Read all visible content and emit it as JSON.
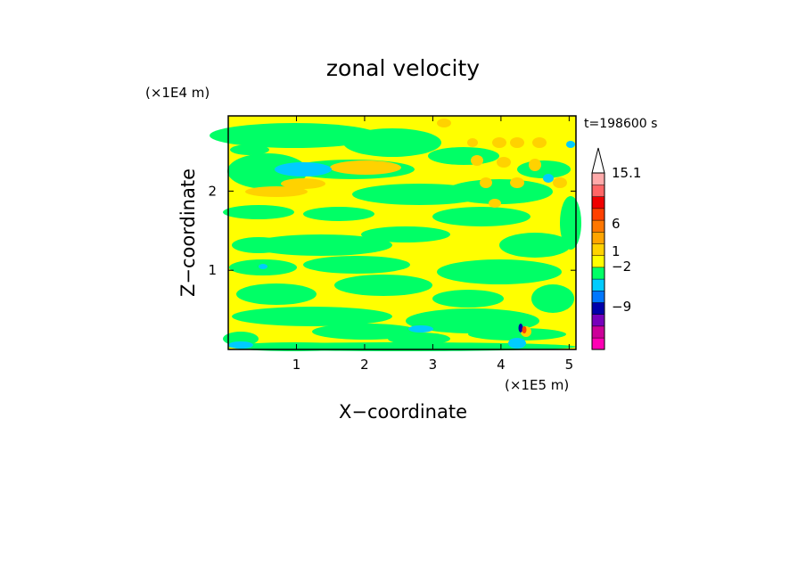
{
  "chart_data": {
    "type": "heatmap",
    "title": "zonal velocity",
    "xlabel": "X−coordinate",
    "ylabel": "Z−coordinate",
    "x_unit": "(×1E5 m)",
    "y_unit": "(×1E4 m)",
    "time_label": "t=198600 s",
    "xlim": [
      0,
      5.1
    ],
    "ylim": [
      0,
      2.95
    ],
    "xticks": [
      "1",
      "2",
      "3",
      "4",
      "5"
    ],
    "yticks": [
      "1",
      "2"
    ],
    "colorbar": {
      "labels": [
        "15.1",
        "6",
        "1",
        "−2",
        "−9"
      ],
      "colors": [
        "#ff00b4",
        "#cc0099",
        "#7700bb",
        "#0000aa",
        "#0077ff",
        "#00ccff",
        "#00ff66",
        "#ffff00",
        "#ffd200",
        "#ffa500",
        "#ff7700",
        "#ff4000",
        "#f00000",
        "#ff6666",
        "#ffaaaa"
      ],
      "extend": "max"
    },
    "field": {
      "background": "#ffff00",
      "dominant_levels": [
        "#00ff66",
        "#ffff00",
        "#ffd200",
        "#00ccff"
      ]
    }
  }
}
